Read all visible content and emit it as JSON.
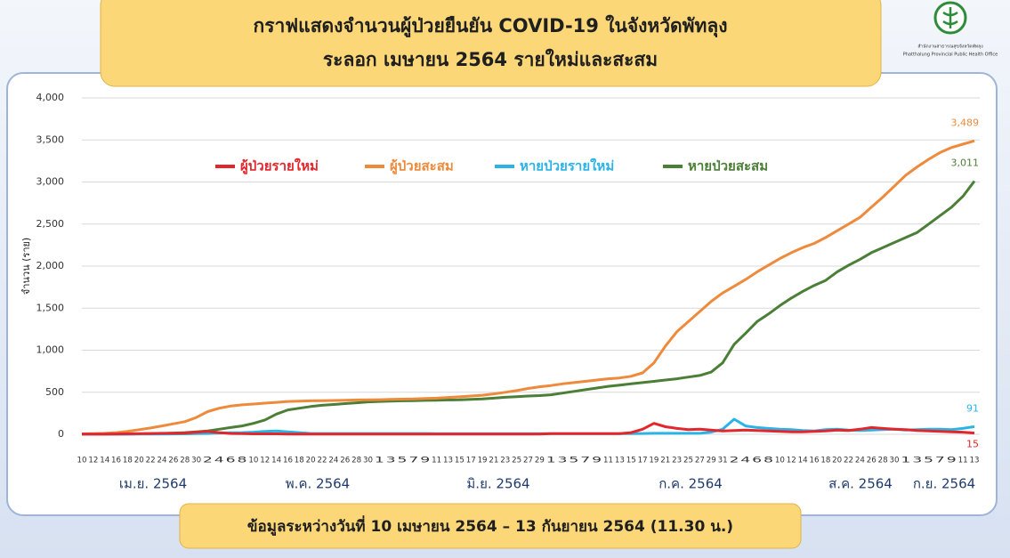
{
  "chart_data": {
    "type": "line",
    "title": "กราฟแสดงจำนวนผู้ป่วยยืนยัน COVID-19 ในจังหวัดพัทลุง",
    "subtitle": "ระลอก เมษายน 2564 รายใหม่และสะสม",
    "y_label": "จำนวน (ราย)",
    "note": "ข้อมูลระหว่างวันที่ 10 เมษายน 2564 – 13 กันยายน 2564 (11.30 น.)",
    "organization": [
      "สำนักงานสาธารณสุขจังหวัดพัทลุง",
      "Phatthalung Provincial Public Health Office"
    ],
    "months": [
      "เม.ย. 2564",
      "พ.ค. 2564",
      "มิ.ย. 2564",
      "ก.ค. 2564",
      "ส.ค. 2564",
      "ก.ย. 2564"
    ],
    "categories": [
      "10",
      "12",
      "14",
      "16",
      "18",
      "20",
      "22",
      "24",
      "26",
      "28",
      "30",
      "2",
      "4",
      "6",
      "8",
      "10",
      "12",
      "14",
      "16",
      "18",
      "20",
      "22",
      "24",
      "26",
      "28",
      "30",
      "1",
      "3",
      "5",
      "7",
      "9",
      "11",
      "13",
      "15",
      "17",
      "19",
      "21",
      "23",
      "25",
      "27",
      "29",
      "1",
      "3",
      "5",
      "7",
      "9",
      "11",
      "13",
      "15",
      "17",
      "19",
      "21",
      "23",
      "25",
      "27",
      "29",
      "31",
      "2",
      "4",
      "6",
      "8",
      "10",
      "12",
      "14",
      "16",
      "18",
      "20",
      "22",
      "24",
      "26",
      "28",
      "30",
      "1",
      "3",
      "5",
      "7",
      "9",
      "11",
      "13"
    ],
    "ylim": [
      0,
      4000
    ],
    "yticks": [
      0,
      500,
      {
        "value": 1000,
        "label": "1,000"
      },
      {
        "value": 1500,
        "label": "1,500"
      },
      {
        "value": 2000,
        "label": "2,000"
      },
      {
        "value": 2500,
        "label": "2,500"
      },
      {
        "value": 3000,
        "label": "3,000"
      },
      {
        "value": 3500,
        "label": "3,500"
      },
      {
        "value": 4000,
        "label": "4,000"
      }
    ],
    "grid": true,
    "legend": "top",
    "series": [
      {
        "name": "ผู้ป่วยรายใหม่",
        "color": "#e3262b",
        "values": [
          2,
          2,
          3,
          4,
          6,
          8,
          10,
          12,
          12,
          15,
          25,
          35,
          20,
          10,
          8,
          5,
          5,
          5,
          3,
          2,
          2,
          2,
          2,
          2,
          2,
          2,
          3,
          3,
          3,
          3,
          3,
          3,
          3,
          3,
          3,
          3,
          3,
          3,
          3,
          3,
          3,
          8,
          8,
          8,
          8,
          8,
          8,
          8,
          20,
          60,
          130,
          90,
          70,
          55,
          60,
          50,
          40,
          45,
          50,
          45,
          40,
          35,
          30,
          30,
          35,
          40,
          50,
          45,
          60,
          80,
          70,
          60,
          55,
          45,
          40,
          35,
          30,
          25,
          15
        ],
        "value_labels": [
          null,
          null,
          null,
          null,
          null,
          null,
          null,
          null,
          null,
          null,
          null,
          null,
          null,
          null,
          null,
          null,
          null,
          null,
          null,
          null,
          null,
          null,
          null,
          null,
          null,
          null,
          null,
          null,
          null,
          null,
          null,
          null,
          null,
          null,
          null,
          null,
          null,
          null,
          null,
          null,
          null,
          null,
          null,
          null,
          null,
          null,
          null,
          null,
          null,
          null,
          null,
          null,
          null,
          null,
          null,
          null,
          null,
          null,
          null,
          null,
          null,
          null,
          null,
          null,
          null,
          null,
          null,
          null,
          null,
          null,
          null,
          null,
          null,
          null,
          null,
          null,
          null,
          null,
          "15"
        ]
      },
      {
        "name": "ผู้ป่วยสะสม",
        "color": "#ee8a3c",
        "values": [
          5,
          8,
          12,
          20,
          35,
          55,
          75,
          100,
          125,
          150,
          200,
          270,
          310,
          335,
          350,
          360,
          370,
          380,
          390,
          395,
          398,
          400,
          402,
          405,
          408,
          410,
          412,
          415,
          418,
          420,
          425,
          430,
          438,
          445,
          455,
          465,
          480,
          500,
          520,
          545,
          565,
          580,
          600,
          615,
          630,
          645,
          660,
          670,
          690,
          730,
          850,
          1050,
          1220,
          1340,
          1460,
          1580,
          1680,
          1760,
          1840,
          1930,
          2010,
          2090,
          2160,
          2220,
          2270,
          2340,
          2420,
          2500,
          2580,
          2700,
          2820,
          2950,
          3080,
          3180,
          3270,
          3350,
          3410,
          3450,
          3489
        ],
        "value_labels": [
          null,
          null,
          null,
          null,
          null,
          null,
          null,
          null,
          null,
          null,
          null,
          null,
          null,
          null,
          null,
          null,
          null,
          null,
          null,
          null,
          null,
          null,
          null,
          null,
          null,
          null,
          null,
          null,
          null,
          null,
          null,
          null,
          null,
          null,
          null,
          null,
          null,
          null,
          null,
          null,
          null,
          null,
          null,
          null,
          null,
          null,
          null,
          null,
          null,
          null,
          null,
          null,
          null,
          null,
          null,
          null,
          null,
          null,
          null,
          null,
          null,
          null,
          null,
          null,
          null,
          null,
          null,
          null,
          null,
          null,
          null,
          null,
          null,
          null,
          null,
          null,
          null,
          null,
          "3,489"
        ]
      },
      {
        "name": "หายป่วยรายใหม่",
        "color": "#2bb3e6",
        "values": [
          0,
          0,
          0,
          0,
          1,
          2,
          2,
          3,
          4,
          5,
          8,
          10,
          15,
          18,
          20,
          25,
          35,
          40,
          30,
          20,
          10,
          10,
          10,
          10,
          10,
          10,
          10,
          10,
          10,
          10,
          10,
          8,
          8,
          8,
          8,
          8,
          8,
          8,
          8,
          8,
          8,
          8,
          8,
          8,
          8,
          8,
          8,
          8,
          8,
          10,
          12,
          12,
          12,
          12,
          12,
          25,
          60,
          180,
          100,
          80,
          70,
          60,
          55,
          45,
          40,
          55,
          60,
          50,
          45,
          50,
          55,
          60,
          50,
          55,
          60,
          60,
          55,
          70,
          91
        ],
        "value_labels": [
          null,
          null,
          null,
          null,
          null,
          null,
          null,
          null,
          null,
          null,
          null,
          null,
          null,
          null,
          null,
          null,
          null,
          null,
          null,
          null,
          null,
          null,
          null,
          null,
          null,
          null,
          null,
          null,
          null,
          null,
          null,
          null,
          null,
          null,
          null,
          null,
          null,
          null,
          null,
          null,
          null,
          null,
          null,
          null,
          null,
          null,
          null,
          null,
          null,
          null,
          null,
          null,
          null,
          null,
          null,
          null,
          null,
          null,
          null,
          null,
          null,
          null,
          null,
          null,
          null,
          null,
          null,
          null,
          null,
          null,
          null,
          null,
          null,
          null,
          null,
          null,
          null,
          null,
          "91"
        ]
      },
      {
        "name": "หายป่วยสะสม",
        "color": "#4b7f37",
        "values": [
          0,
          0,
          0,
          0,
          2,
          5,
          8,
          10,
          15,
          20,
          30,
          40,
          60,
          80,
          100,
          130,
          170,
          240,
          290,
          310,
          330,
          345,
          355,
          365,
          375,
          385,
          390,
          395,
          398,
          400,
          403,
          405,
          408,
          410,
          415,
          420,
          430,
          440,
          448,
          455,
          460,
          470,
          490,
          510,
          530,
          550,
          570,
          585,
          600,
          615,
          630,
          645,
          660,
          680,
          700,
          740,
          850,
          1070,
          1200,
          1340,
          1430,
          1530,
          1620,
          1700,
          1770,
          1830,
          1930,
          2010,
          2080,
          2160,
          2220,
          2280,
          2340,
          2400,
          2500,
          2600,
          2700,
          2830,
          3011
        ],
        "value_labels": [
          null,
          null,
          null,
          null,
          null,
          null,
          null,
          null,
          null,
          null,
          null,
          null,
          null,
          null,
          null,
          null,
          null,
          null,
          null,
          null,
          null,
          null,
          null,
          null,
          null,
          null,
          null,
          null,
          null,
          null,
          null,
          null,
          null,
          null,
          null,
          null,
          null,
          null,
          null,
          null,
          null,
          null,
          null,
          null,
          null,
          null,
          null,
          null,
          null,
          null,
          null,
          null,
          null,
          null,
          null,
          null,
          null,
          null,
          null,
          null,
          null,
          null,
          null,
          null,
          null,
          null,
          null,
          null,
          null,
          null,
          null,
          null,
          null,
          null,
          null,
          null,
          null,
          null,
          "3,011"
        ]
      }
    ]
  }
}
